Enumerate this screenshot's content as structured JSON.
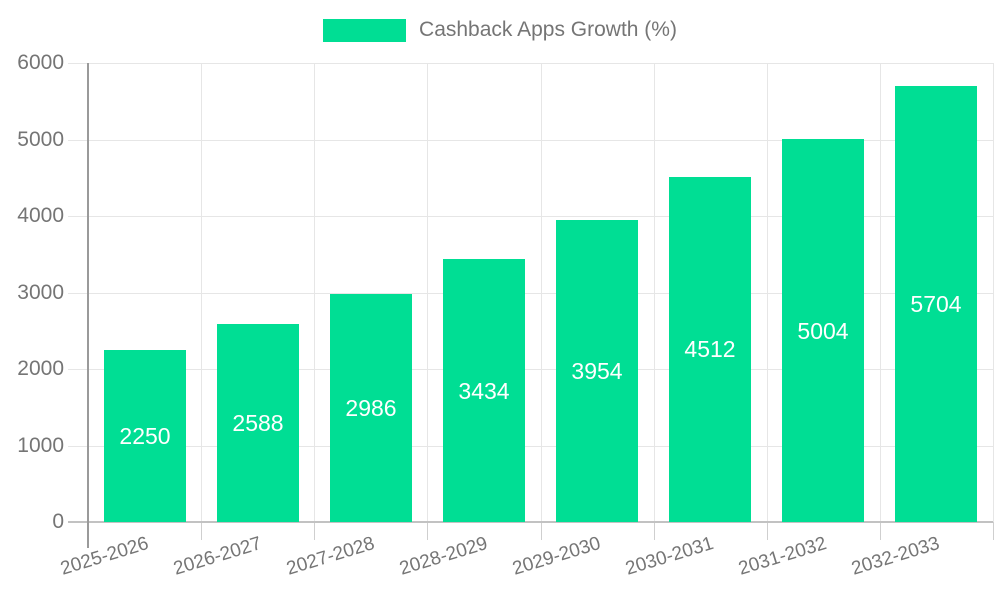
{
  "legend": {
    "label": "Cashback Apps Growth (%)"
  },
  "chart_data": {
    "type": "bar",
    "title": "Cashback Apps Growth (%)",
    "categories": [
      "2025-2026",
      "2026-2027",
      "2027-2028",
      "2028-2029",
      "2029-2030",
      "2030-2031",
      "2031-2032",
      "2032-2033"
    ],
    "values": [
      2250,
      2588,
      2986,
      3434,
      3954,
      4512,
      5004,
      5704
    ],
    "xlabel": "",
    "ylabel": "",
    "ylim": [
      0,
      6000
    ],
    "yticks": [
      0,
      1000,
      2000,
      3000,
      4000,
      5000,
      6000
    ],
    "grid": true,
    "legend_position": "top",
    "value_labels_inside_bars": true,
    "x_label_rotation_deg": -17,
    "colors": {
      "bar": "#00de94",
      "axis_text": "#757575",
      "value_label": "#ffffff"
    }
  }
}
